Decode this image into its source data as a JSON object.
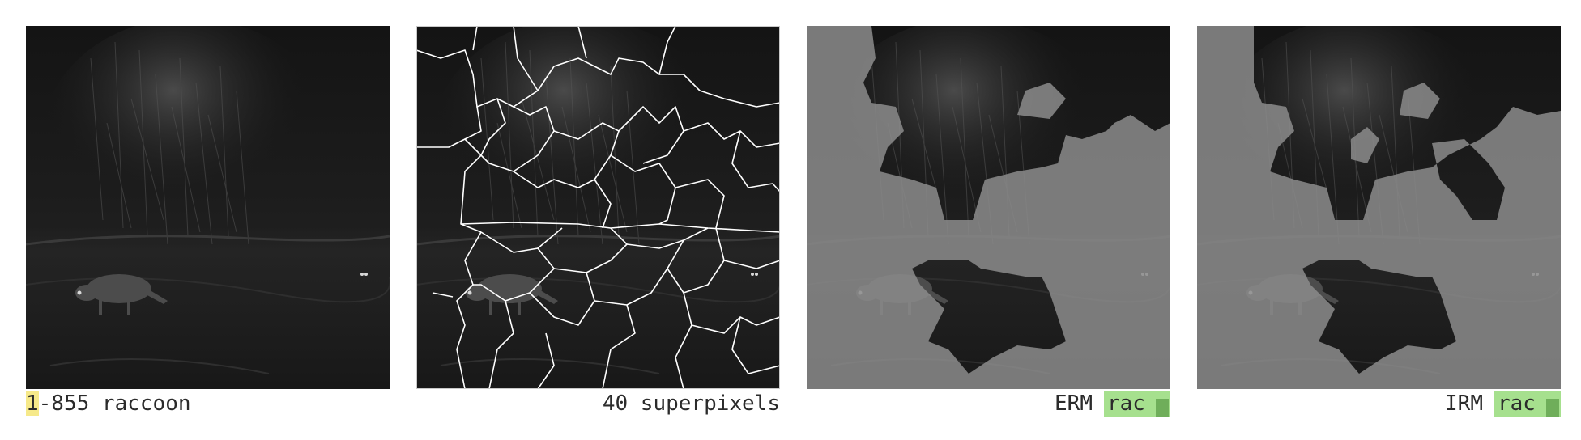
{
  "panels": [
    {
      "caption_prefix": "1",
      "caption_rest": "-855 raccoon",
      "image_alt": "night camera trap photo of raccoon"
    },
    {
      "caption": "40 superpixels",
      "image_alt": "superpixel segmentation overlay"
    },
    {
      "method": "ERM",
      "prediction": "rac",
      "image_alt": "ERM explanation mask"
    },
    {
      "method": "IRM",
      "prediction": "rac",
      "image_alt": "IRM explanation mask"
    }
  ],
  "colors": {
    "highlight": "#f6e98a",
    "prediction_badge": "#a6e08e",
    "prediction_bar": "#6fae5a",
    "masked_overlay": "#8c8c8c"
  }
}
